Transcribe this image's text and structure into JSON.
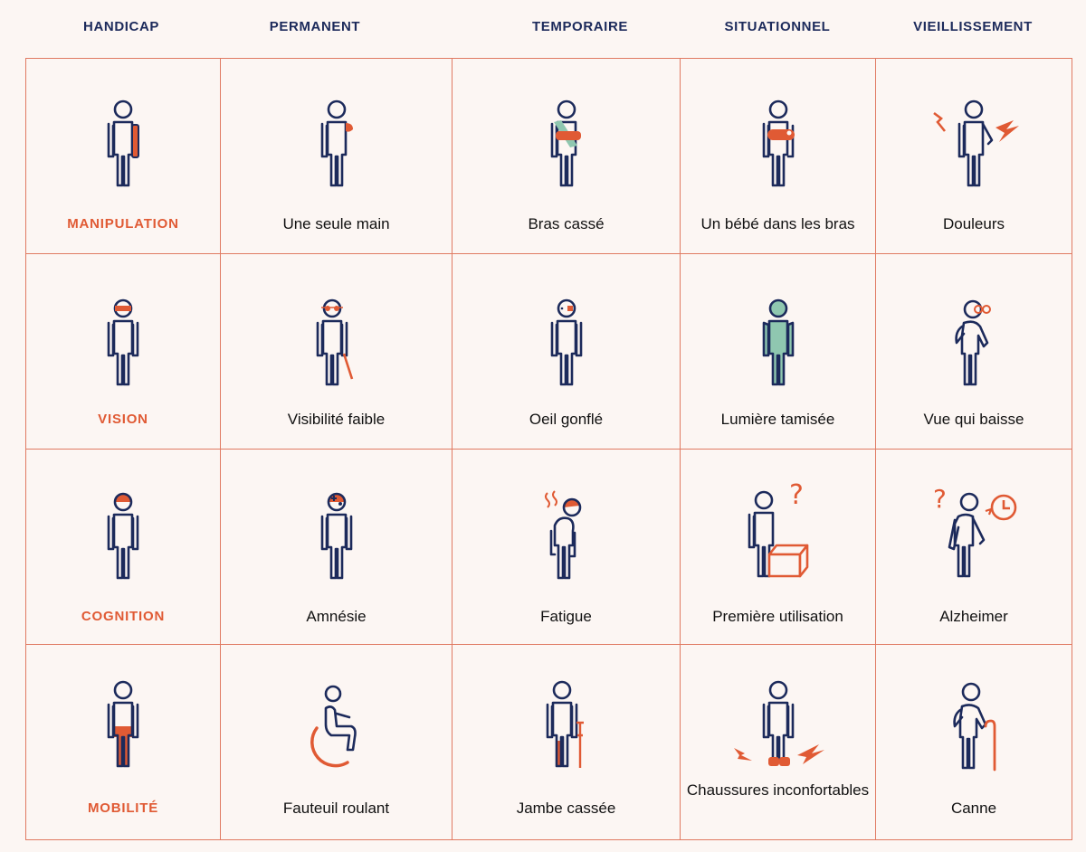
{
  "colors": {
    "navy": "#1c2a5b",
    "orange": "#e05a34",
    "green": "#8fc7b0",
    "grid": "#e07a62",
    "background": "#fcf6f3"
  },
  "headers": [
    "HANDICAP",
    "PERMANENT",
    "TEMPORAIRE",
    "SITUATIONNEL",
    "VIEILLISSEMENT"
  ],
  "rows": [
    {
      "category": "MANIPULATION",
      "permanent": "Une seule main",
      "temporaire": "Bras cassé",
      "situationnel": "Un bébé dans les bras",
      "vieillissement": "Douleurs"
    },
    {
      "category": "VISION",
      "permanent": "Visibilité faible",
      "temporaire": "Oeil gonflé",
      "situationnel": "Lumière tamisée",
      "vieillissement": "Vue qui baisse"
    },
    {
      "category": "COGNITION",
      "permanent": "Amnésie",
      "temporaire": "Fatigue",
      "situationnel": "Première utilisation",
      "vieillissement": "Alzheimer"
    },
    {
      "category": "MOBILITÉ",
      "permanent": "Fauteuil roulant",
      "temporaire": "Jambe cassée",
      "situationnel": "Chaussures inconfortables",
      "vieillissement": "Canne"
    }
  ],
  "icons": [
    [
      "arm-highlight-icon",
      "one-arm-icon",
      "broken-arm-icon",
      "baby-in-arms-icon",
      "pain-lightning-icon"
    ],
    [
      "eyes-highlight-icon",
      "blind-cane-icon",
      "swollen-eye-icon",
      "dim-light-icon",
      "glasses-elder-icon"
    ],
    [
      "head-highlight-icon",
      "amnesia-icon",
      "fatigue-icon",
      "first-use-box-icon",
      "alzheimer-clock-icon"
    ],
    [
      "legs-highlight-icon",
      "wheelchair-icon",
      "broken-leg-crutch-icon",
      "uncomfortable-shoes-icon",
      "cane-elder-icon"
    ]
  ]
}
